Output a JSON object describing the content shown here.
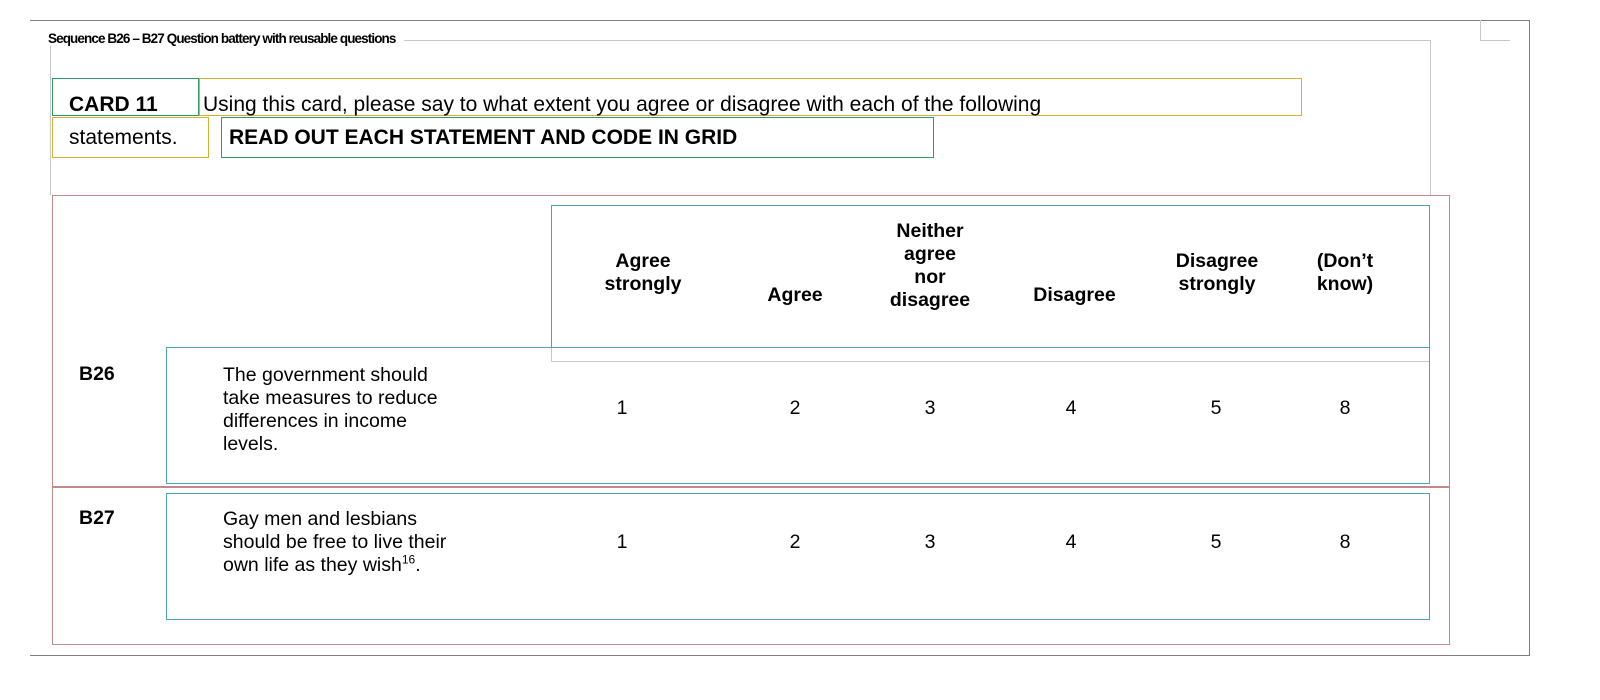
{
  "sequence": {
    "title": "Sequence B26 – B27 Question battery with reusable questions"
  },
  "question": {
    "card_label": "CARD 11",
    "text_line1": "Using this card, please say to what extent you agree or disagree with each of the following",
    "text_line2": "statements.",
    "instruction": "READ OUT EACH STATEMENT AND CODE IN GRID"
  },
  "grid": {
    "headers": [
      [
        "Agree",
        "strongly"
      ],
      [
        "Agree"
      ],
      [
        "Neither",
        "agree",
        "nor",
        "disagree"
      ],
      [
        "Disagree"
      ],
      [
        "Disagree",
        "strongly"
      ],
      [
        "(Don’t",
        "know)"
      ]
    ],
    "rows": [
      {
        "id": "B26",
        "statement": [
          "The government should",
          "take measures to reduce",
          "differences in income",
          "levels."
        ],
        "footnote": "",
        "codes": [
          "1",
          "2",
          "3",
          "4",
          "5",
          "8"
        ]
      },
      {
        "id": "B27",
        "statement": [
          "Gay men and lesbians",
          "should be free to live their",
          "own life as they wish"
        ],
        "footnote": "16",
        "statement_end": ".",
        "codes": [
          "1",
          "2",
          "3",
          "4",
          "5",
          "8"
        ]
      }
    ]
  }
}
